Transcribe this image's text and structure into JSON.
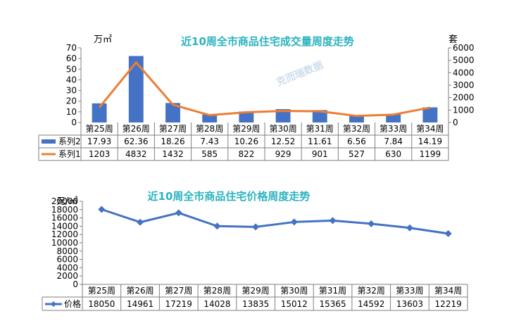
{
  "chart_data": [
    {
      "type": "bar",
      "title": "近10周全市商品住宅成交量周度走势",
      "ylabel": "万㎡",
      "y2label": "套",
      "ylim": [
        0,
        70
      ],
      "y2lim": [
        0,
        6000
      ],
      "yticks": [
        "70",
        "60",
        "50",
        "40",
        "30",
        "20",
        "10",
        "0"
      ],
      "y2ticks": [
        "6000",
        "5000",
        "4000",
        "3000",
        "2000",
        "1000",
        "0"
      ],
      "categories": [
        "第25周",
        "第26周",
        "第27周",
        "第28周",
        "第29周",
        "第30周",
        "第31周",
        "第32周",
        "第33周",
        "第34周"
      ],
      "series": [
        {
          "name": "系列2",
          "kind": "bar",
          "axis": "left",
          "color": "#4472c4",
          "values": [
            17.93,
            62.36,
            18.26,
            7.43,
            10.26,
            12.52,
            11.61,
            6.56,
            7.84,
            14.19
          ],
          "labels": [
            "17.93",
            "62.36",
            "18.26",
            "7.43",
            "10.26",
            "12.52",
            "11.61",
            "6.56",
            "7.84",
            "14.19"
          ]
        },
        {
          "name": "系列1",
          "kind": "line",
          "axis": "right",
          "color": "#ed7d31",
          "values": [
            1203,
            4832,
            1432,
            585,
            822,
            929,
            901,
            527,
            630,
            1199
          ],
          "labels": [
            "1203",
            "4832",
            "1432",
            "585",
            "822",
            "929",
            "901",
            "527",
            "630",
            "1199"
          ]
        }
      ],
      "watermark": "克而瑞数据"
    },
    {
      "type": "line",
      "title": "近10周全市商品住宅价格周度走势",
      "ylabel": "元/㎡",
      "ylim": [
        0,
        20000
      ],
      "yticks": [
        "20000",
        "18000",
        "16000",
        "14000",
        "12000",
        "10000",
        "8000",
        "6000",
        "4000",
        "2000",
        "0"
      ],
      "categories": [
        "第25周",
        "第26周",
        "第27周",
        "第28周",
        "第29周",
        "第30周",
        "第31周",
        "第32周",
        "第33周",
        "第34周"
      ],
      "series": [
        {
          "name": "价格",
          "kind": "line",
          "color": "#4472c4",
          "values": [
            18050,
            14961,
            17219,
            14028,
            13835,
            15012,
            15365,
            14592,
            13603,
            12219
          ],
          "labels": [
            "18050",
            "14961",
            "17219",
            "14028",
            "13835",
            "15012",
            "15365",
            "14592",
            "13603",
            "12219"
          ]
        }
      ]
    }
  ]
}
